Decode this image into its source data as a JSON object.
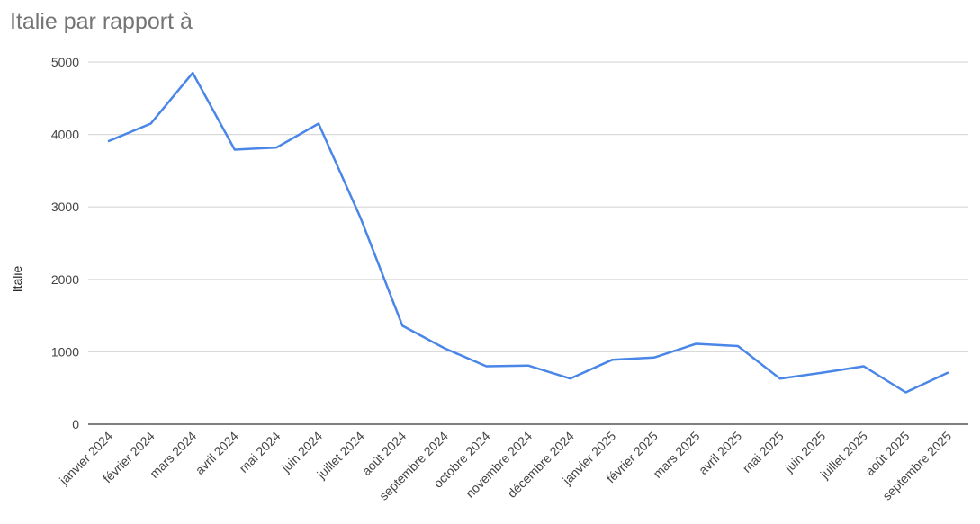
{
  "chart_data": {
    "type": "line",
    "title": "Italie par rapport à",
    "xlabel": "",
    "ylabel": "Italie",
    "ylim": [
      0,
      5000
    ],
    "yticks": [
      0,
      1000,
      2000,
      3000,
      4000,
      5000
    ],
    "grid": true,
    "legend": "none",
    "categories": [
      "janvier 2024",
      "février 2024",
      "mars 2024",
      "avril 2024",
      "mai 2024",
      "juin 2024",
      "juillet 2024",
      "août 2024",
      "septembre 2024",
      "octobre 2024",
      "novembre 2024",
      "décembre 2024",
      "janvier 2025",
      "février 2025",
      "mars 2025",
      "avril 2025",
      "mai 2025",
      "juin 2025",
      "juillet 2025",
      "août 2025",
      "septembre 2025"
    ],
    "series": [
      {
        "color": "#4a86e8",
        "values": [
          3910,
          4150,
          4850,
          3790,
          3820,
          4150,
          2850,
          1360,
          1050,
          800,
          810,
          630,
          890,
          920,
          1110,
          1080,
          630,
          710,
          800,
          440,
          710
        ]
      }
    ]
  },
  "colors": {
    "line": "#4a86e8",
    "grid": "#d9d9d9",
    "axis": "#333333",
    "title": "#757575"
  }
}
